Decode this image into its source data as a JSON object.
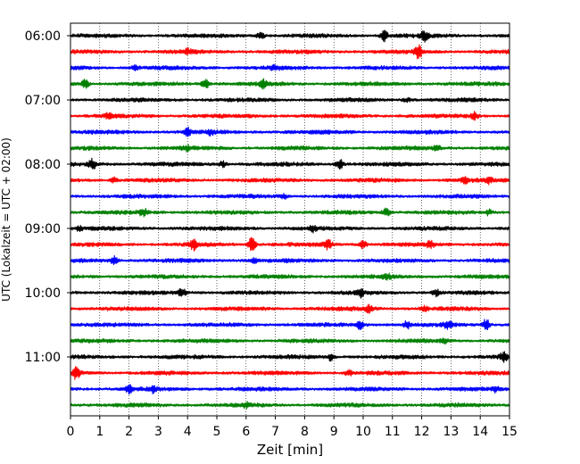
{
  "chart_data": {
    "type": "line",
    "title": "",
    "xlabel": "Zeit  [min]",
    "ylabel": "UTC (Lokalzeit = UTC + 02:00)",
    "xlim": [
      0,
      15
    ],
    "x_ticks": [
      0,
      1,
      2,
      3,
      4,
      5,
      6,
      7,
      8,
      9,
      10,
      11,
      12,
      13,
      14,
      15
    ],
    "y_tick_labels": [
      "06:00",
      "07:00",
      "08:00",
      "09:00",
      "10:00",
      "11:00"
    ],
    "grid": "vertical dotted lines at each minute",
    "legend": "none",
    "trace_colors": [
      "#000000",
      "#ff0000",
      "#0000ff",
      "#008000"
    ],
    "trace_interval_minutes": 15,
    "trace_start_times": [
      "06:00",
      "06:15",
      "06:30",
      "06:45",
      "07:00",
      "07:15",
      "07:30",
      "07:45",
      "08:00",
      "08:15",
      "08:30",
      "08:45",
      "09:00",
      "09:15",
      "09:30",
      "09:45",
      "10:00",
      "10:15",
      "10:30",
      "10:45",
      "11:00",
      "11:15",
      "11:30",
      "11:45"
    ],
    "events": [
      {
        "trace": 0,
        "minute": 6.5,
        "amp": 0.5
      },
      {
        "trace": 0,
        "minute": 10.7,
        "amp": 0.9
      },
      {
        "trace": 0,
        "minute": 12.1,
        "amp": 0.7
      },
      {
        "trace": 1,
        "minute": 11.9,
        "amp": 1.0
      },
      {
        "trace": 1,
        "minute": 4.0,
        "amp": 0.3
      },
      {
        "trace": 2,
        "minute": 2.2,
        "amp": 0.3
      },
      {
        "trace": 2,
        "minute": 7.0,
        "amp": 0.3
      },
      {
        "trace": 3,
        "minute": 0.5,
        "amp": 0.6
      },
      {
        "trace": 3,
        "minute": 4.6,
        "amp": 0.8
      },
      {
        "trace": 3,
        "minute": 6.6,
        "amp": 0.6
      },
      {
        "trace": 4,
        "minute": 11.5,
        "amp": 0.3
      },
      {
        "trace": 5,
        "minute": 1.3,
        "amp": 0.3
      },
      {
        "trace": 5,
        "minute": 13.8,
        "amp": 0.5
      },
      {
        "trace": 6,
        "minute": 4.0,
        "amp": 0.6
      },
      {
        "trace": 6,
        "minute": 4.8,
        "amp": 0.4
      },
      {
        "trace": 7,
        "minute": 4.0,
        "amp": 0.4
      },
      {
        "trace": 7,
        "minute": 12.5,
        "amp": 0.4
      },
      {
        "trace": 8,
        "minute": 0.75,
        "amp": 0.8
      },
      {
        "trace": 8,
        "minute": 5.2,
        "amp": 0.4
      },
      {
        "trace": 8,
        "minute": 9.2,
        "amp": 0.7
      },
      {
        "trace": 9,
        "minute": 1.5,
        "amp": 0.4
      },
      {
        "trace": 9,
        "minute": 13.5,
        "amp": 0.4
      },
      {
        "trace": 9,
        "minute": 14.3,
        "amp": 0.4
      },
      {
        "trace": 10,
        "minute": 7.3,
        "amp": 0.3
      },
      {
        "trace": 11,
        "minute": 2.5,
        "amp": 0.6
      },
      {
        "trace": 11,
        "minute": 10.8,
        "amp": 0.7
      },
      {
        "trace": 11,
        "minute": 14.3,
        "amp": 0.4
      },
      {
        "trace": 12,
        "minute": 0.3,
        "amp": 0.3
      },
      {
        "trace": 12,
        "minute": 8.3,
        "amp": 0.4
      },
      {
        "trace": 13,
        "minute": 4.2,
        "amp": 0.9
      },
      {
        "trace": 13,
        "minute": 6.2,
        "amp": 1.2
      },
      {
        "trace": 13,
        "minute": 8.8,
        "amp": 0.7
      },
      {
        "trace": 13,
        "minute": 10.0,
        "amp": 0.7
      },
      {
        "trace": 13,
        "minute": 12.3,
        "amp": 0.5
      },
      {
        "trace": 14,
        "minute": 1.5,
        "amp": 0.6
      },
      {
        "trace": 14,
        "minute": 6.3,
        "amp": 0.3
      },
      {
        "trace": 15,
        "minute": 10.8,
        "amp": 0.5
      },
      {
        "trace": 16,
        "minute": 3.8,
        "amp": 0.7
      },
      {
        "trace": 16,
        "minute": 9.9,
        "amp": 0.6
      },
      {
        "trace": 16,
        "minute": 12.5,
        "amp": 0.5
      },
      {
        "trace": 17,
        "minute": 10.2,
        "amp": 0.5
      },
      {
        "trace": 17,
        "minute": 12.1,
        "amp": 0.4
      },
      {
        "trace": 18,
        "minute": 9.9,
        "amp": 0.6
      },
      {
        "trace": 18,
        "minute": 11.5,
        "amp": 0.6
      },
      {
        "trace": 18,
        "minute": 12.9,
        "amp": 0.6
      },
      {
        "trace": 18,
        "minute": 14.2,
        "amp": 0.9
      },
      {
        "trace": 19,
        "minute": 12.8,
        "amp": 0.3
      },
      {
        "trace": 20,
        "minute": 8.9,
        "amp": 0.5
      },
      {
        "trace": 20,
        "minute": 14.8,
        "amp": 0.7
      },
      {
        "trace": 21,
        "minute": 0.2,
        "amp": 0.9
      },
      {
        "trace": 21,
        "minute": 9.5,
        "amp": 0.4
      },
      {
        "trace": 22,
        "minute": 2.0,
        "amp": 0.6
      },
      {
        "trace": 22,
        "minute": 2.8,
        "amp": 0.4
      },
      {
        "trace": 22,
        "minute": 14.5,
        "amp": 0.4
      },
      {
        "trace": 23,
        "minute": 6.0,
        "amp": 0.3
      }
    ]
  }
}
